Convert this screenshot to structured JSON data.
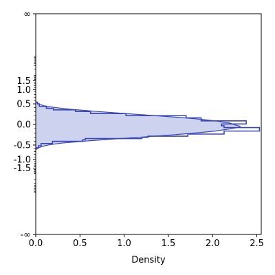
{
  "chart_data": {
    "type": "histogram-horizontal",
    "xlabel": "Density",
    "ylabel": "",
    "xlim": [
      0.0,
      2.55
    ],
    "y_axis_scale": "symmetric-compressed (tan-like), with infinite endpoints",
    "xticks": [
      {
        "value": 0.0,
        "label": "0.0"
      },
      {
        "value": 0.5,
        "label": "0.5"
      },
      {
        "value": 1.0,
        "label": "1.0"
      },
      {
        "value": 1.5,
        "label": "1.5"
      },
      {
        "value": 2.0,
        "label": "2.0"
      },
      {
        "value": 2.5,
        "label": "2.5"
      }
    ],
    "yticks": [
      {
        "value": "inf",
        "label": "∞"
      },
      {
        "value": 1.5,
        "label": "1.5"
      },
      {
        "value": 1.0,
        "label": "1.0"
      },
      {
        "value": 0.5,
        "label": "0.5"
      },
      {
        "value": 0.0,
        "label": "0.0"
      },
      {
        "value": -0.5,
        "label": "-0.5"
      },
      {
        "value": -1.0,
        "label": "-1.0"
      },
      {
        "value": -1.5,
        "label": "-1.5"
      },
      {
        "value": "-inf",
        "label": "-∞"
      }
    ],
    "histogram_bins": [
      {
        "y_low": -0.58,
        "y_high": -0.52,
        "density": 0.03
      },
      {
        "y_low": -0.52,
        "y_high": -0.46,
        "density": 0.06
      },
      {
        "y_low": -0.46,
        "y_high": -0.4,
        "density": 0.19
      },
      {
        "y_low": -0.4,
        "y_high": -0.36,
        "density": 0.53
      },
      {
        "y_low": -0.36,
        "y_high": -0.33,
        "density": 0.56
      },
      {
        "y_low": -0.33,
        "y_high": -0.3,
        "density": 1.2
      },
      {
        "y_low": -0.3,
        "y_high": -0.27,
        "density": 1.27
      },
      {
        "y_low": -0.27,
        "y_high": -0.22,
        "density": 1.72
      },
      {
        "y_low": -0.22,
        "y_high": -0.15,
        "density": 2.13
      },
      {
        "y_low": -0.15,
        "y_high": -0.07,
        "density": 2.53
      },
      {
        "y_low": -0.07,
        "y_high": -0.03,
        "density": 2.13
      },
      {
        "y_low": -0.03,
        "y_high": 0.01,
        "density": 2.1
      },
      {
        "y_low": 0.01,
        "y_high": 0.08,
        "density": 2.38
      },
      {
        "y_low": 0.08,
        "y_high": 0.15,
        "density": 1.87
      },
      {
        "y_low": 0.15,
        "y_high": 0.2,
        "density": 1.7
      },
      {
        "y_low": 0.2,
        "y_high": 0.25,
        "density": 1.02
      },
      {
        "y_low": 0.25,
        "y_high": 0.3,
        "density": 0.62
      },
      {
        "y_low": 0.3,
        "y_high": 0.34,
        "density": 0.45
      },
      {
        "y_low": 0.34,
        "y_high": 0.38,
        "density": 0.2
      },
      {
        "y_low": 0.38,
        "y_high": 0.43,
        "density": 0.12
      },
      {
        "y_low": 0.43,
        "y_high": 0.5,
        "density": 0.04
      },
      {
        "y_low": 0.5,
        "y_high": 0.55,
        "density": 0.02
      }
    ],
    "kde_curve": [
      {
        "y": -0.64,
        "density": 0.0
      },
      {
        "y": -0.6,
        "density": 0.02
      },
      {
        "y": -0.55,
        "density": 0.06
      },
      {
        "y": -0.5,
        "density": 0.14
      },
      {
        "y": -0.45,
        "density": 0.28
      },
      {
        "y": -0.4,
        "density": 0.52
      },
      {
        "y": -0.35,
        "density": 0.82
      },
      {
        "y": -0.3,
        "density": 1.15
      },
      {
        "y": -0.25,
        "density": 1.48
      },
      {
        "y": -0.2,
        "density": 1.78
      },
      {
        "y": -0.15,
        "density": 2.03
      },
      {
        "y": -0.1,
        "density": 2.2
      },
      {
        "y": -0.06,
        "density": 2.31
      },
      {
        "y": -0.04,
        "density": 2.31
      },
      {
        "y": -0.02,
        "density": 2.27
      },
      {
        "y": 0.0,
        "density": 2.24
      },
      {
        "y": 0.03,
        "density": 2.2
      },
      {
        "y": 0.05,
        "density": 2.13
      },
      {
        "y": 0.08,
        "density": 2.03
      },
      {
        "y": 0.12,
        "density": 1.85
      },
      {
        "y": 0.16,
        "density": 1.62
      },
      {
        "y": 0.2,
        "density": 1.35
      },
      {
        "y": 0.25,
        "density": 1.02
      },
      {
        "y": 0.3,
        "density": 0.7
      },
      {
        "y": 0.35,
        "density": 0.42
      },
      {
        "y": 0.4,
        "density": 0.22
      },
      {
        "y": 0.45,
        "density": 0.09
      },
      {
        "y": 0.5,
        "density": 0.03
      },
      {
        "y": 0.57,
        "density": 0.0
      }
    ],
    "colors": {
      "fill": "#cdd3ef",
      "line": "#3a45b8",
      "axis": "#000000",
      "background": "#ffffff"
    },
    "grid": false,
    "legend": false
  }
}
